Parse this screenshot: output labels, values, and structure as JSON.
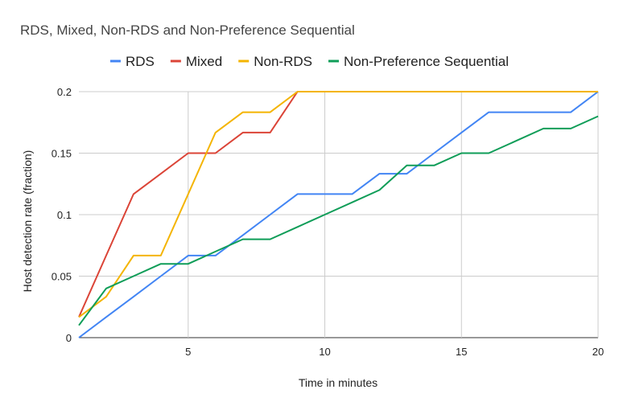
{
  "chart_data": {
    "type": "line",
    "title": "RDS, Mixed, Non-RDS and Non-Preference Sequential",
    "xlabel": "Time in minutes",
    "ylabel": "Host detection rate (fraction)",
    "xlim": [
      1,
      20
    ],
    "ylim": [
      0,
      0.2
    ],
    "x_ticks": [
      5,
      10,
      15,
      20
    ],
    "y_ticks": [
      0,
      0.05,
      0.1,
      0.15,
      0.2
    ],
    "x_tick_labels": [
      "5",
      "10",
      "15",
      "20"
    ],
    "y_tick_labels": [
      "0",
      "0.05",
      "0.1",
      "0.15",
      "0.2"
    ],
    "grid": true,
    "legend_position": "top",
    "x": [
      1,
      2,
      3,
      4,
      5,
      6,
      7,
      8,
      9,
      10,
      11,
      12,
      13,
      14,
      15,
      16,
      17,
      18,
      19,
      20
    ],
    "series": [
      {
        "name": "RDS",
        "color": "#4285f4",
        "values": [
          0,
          0.0167,
          0.0333,
          0.05,
          0.0667,
          0.0667,
          0.0833,
          0.1,
          0.1167,
          0.1167,
          0.1167,
          0.1333,
          0.1333,
          0.15,
          0.1667,
          0.1833,
          0.1833,
          0.1833,
          0.1833,
          0.2
        ]
      },
      {
        "name": "Mixed",
        "color": "#db4437",
        "values": [
          0.0167,
          0.0667,
          0.1167,
          0.1333,
          0.15,
          0.15,
          0.1667,
          0.1667,
          0.2,
          0.2,
          0.2,
          0.2,
          0.2,
          0.2,
          0.2,
          0.2,
          0.2,
          0.2,
          0.2,
          0.2
        ]
      },
      {
        "name": "Non-RDS",
        "color": "#f4b400",
        "values": [
          0.0167,
          0.0333,
          0.0667,
          0.0667,
          0.1167,
          0.1667,
          0.1833,
          0.1833,
          0.2,
          0.2,
          0.2,
          0.2,
          0.2,
          0.2,
          0.2,
          0.2,
          0.2,
          0.2,
          0.2,
          0.2
        ]
      },
      {
        "name": "Non-Preference Sequential",
        "color": "#0f9d58",
        "values": [
          0.01,
          0.04,
          0.05,
          0.06,
          0.06,
          0.07,
          0.08,
          0.08,
          0.09,
          0.1,
          0.11,
          0.12,
          0.14,
          0.14,
          0.15,
          0.15,
          0.16,
          0.17,
          0.17,
          0.18
        ]
      }
    ]
  }
}
